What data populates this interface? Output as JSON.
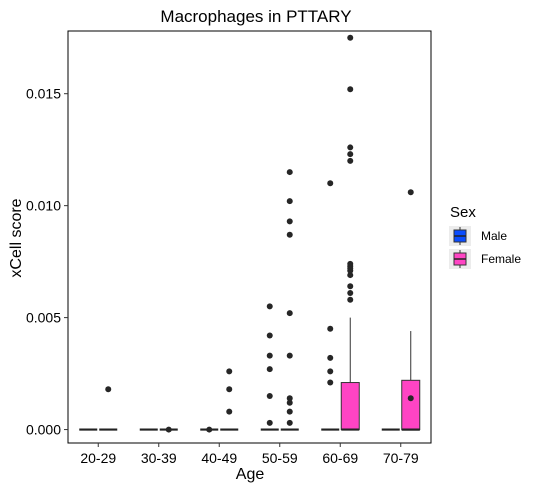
{
  "chart_data": {
    "type": "boxplot",
    "title": "Macrophages in PTTARY",
    "xlabel": "Age",
    "ylabel": "xCell score",
    "categories": [
      "20-29",
      "30-39",
      "40-49",
      "50-59",
      "60-69",
      "70-79"
    ],
    "ylim": [
      -0.0006,
      0.0178
    ],
    "yticks": [
      0.0,
      0.005,
      0.01,
      0.015
    ],
    "ytick_labels": [
      "0.000",
      "0.005",
      "0.010",
      "0.015"
    ],
    "grid": false,
    "legend": {
      "title": "Sex",
      "position": "right",
      "entries": [
        {
          "label": "Male",
          "color": "#0a4cff"
        },
        {
          "label": "Female",
          "color": "#ff44c4"
        }
      ]
    },
    "series": [
      {
        "name": "Male",
        "color": "#0a4cff",
        "boxes": [
          {
            "category": "20-29",
            "q1": 0,
            "median": 0,
            "q3": 0,
            "whisker_low": 0,
            "whisker_high": 0,
            "outliers": []
          },
          {
            "category": "30-39",
            "q1": 0,
            "median": 0,
            "q3": 0,
            "whisker_low": 0,
            "whisker_high": 0,
            "outliers": []
          },
          {
            "category": "40-49",
            "q1": 0,
            "median": 0,
            "q3": 0,
            "whisker_low": 0,
            "whisker_high": 0,
            "outliers": [
              0.0
            ]
          },
          {
            "category": "50-59",
            "q1": 0,
            "median": 0,
            "q3": 0,
            "whisker_low": 0,
            "whisker_high": 0,
            "outliers": [
              0.0003,
              0.0015,
              0.0027,
              0.0033,
              0.0042,
              0.0055
            ]
          },
          {
            "category": "60-69",
            "q1": 0,
            "median": 0,
            "q3": 0,
            "whisker_low": 0,
            "whisker_high": 0,
            "outliers": [
              0.0021,
              0.0026,
              0.0032,
              0.0045,
              0.011
            ]
          },
          {
            "category": "70-79",
            "q1": 0,
            "median": 0,
            "q3": 0,
            "whisker_low": 0,
            "whisker_high": 0,
            "outliers": []
          }
        ]
      },
      {
        "name": "Female",
        "color": "#ff44c4",
        "boxes": [
          {
            "category": "20-29",
            "q1": 0,
            "median": 0,
            "q3": 0,
            "whisker_low": 0,
            "whisker_high": 0,
            "outliers": [
              0.0018
            ]
          },
          {
            "category": "30-39",
            "q1": 0,
            "median": 0,
            "q3": 0,
            "whisker_low": 0,
            "whisker_high": 0,
            "outliers": [
              0.0
            ]
          },
          {
            "category": "40-49",
            "q1": 0,
            "median": 0,
            "q3": 0,
            "whisker_low": 0,
            "whisker_high": 0,
            "outliers": [
              0.0008,
              0.0018,
              0.0026
            ]
          },
          {
            "category": "50-59",
            "q1": 0,
            "median": 0,
            "q3": 0,
            "whisker_low": 0,
            "whisker_high": 0,
            "outliers": [
              0.0003,
              0.0008,
              0.0012,
              0.0014,
              0.0033,
              0.0052,
              0.0087,
              0.0093,
              0.0102,
              0.0115
            ]
          },
          {
            "category": "60-69",
            "q1": 0,
            "median": 0,
            "q3": 0.0021,
            "whisker_low": 0,
            "whisker_high": 0.005,
            "outliers": [
              0.0058,
              0.0061,
              0.0064,
              0.0069,
              0.0071,
              0.0072,
              0.0073,
              0.0074,
              0.012,
              0.0123,
              0.0126,
              0.0152,
              0.0175
            ]
          },
          {
            "category": "70-79",
            "q1": 0,
            "median": 0,
            "q3": 0.0022,
            "whisker_low": 0,
            "whisker_high": 0.0044,
            "outliers": []
          }
        ]
      },
      {
        "name": "",
        "color": "#ffffff",
        "boxes": [
          {
            "category": "70-79",
            "q1": 0,
            "median": 0,
            "q3": 0,
            "whisker_low": 0,
            "whisker_high": 0,
            "outliers": [
              0.0014,
              0.0106
            ]
          }
        ]
      }
    ]
  }
}
